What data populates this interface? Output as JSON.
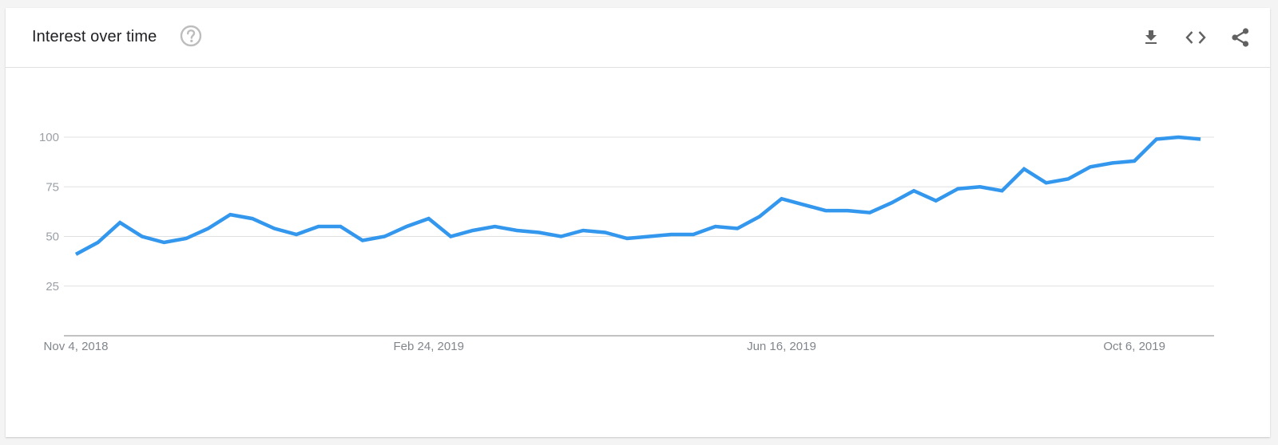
{
  "header": {
    "title": "Interest over time",
    "help_icon": "help-circle-icon",
    "actions": [
      {
        "name": "download-button",
        "icon": "download-icon"
      },
      {
        "name": "embed-button",
        "icon": "code-icon"
      },
      {
        "name": "share-button",
        "icon": "share-icon"
      }
    ]
  },
  "colors": {
    "line": "#3397ee",
    "grid": "#e0e0e0",
    "axis": "#9e9e9e",
    "icon": "#616161",
    "help_icon": "#bdbdbd"
  },
  "chart_data": {
    "type": "line",
    "title": "",
    "xlabel": "",
    "ylabel": "",
    "ylim": [
      0,
      100
    ],
    "yticks": [
      25,
      50,
      75,
      100
    ],
    "xtick_labels": [
      {
        "index": 0,
        "label": "Nov 4, 2018"
      },
      {
        "index": 16,
        "label": "Feb 24, 2019"
      },
      {
        "index": 32,
        "label": "Jun 16, 2019"
      },
      {
        "index": 48,
        "label": "Oct 6, 2019"
      }
    ],
    "grid": true,
    "series": [
      {
        "values": [
          41,
          47,
          57,
          50,
          47,
          49,
          54,
          61,
          59,
          54,
          51,
          55,
          55,
          48,
          50,
          55,
          59,
          50,
          53,
          55,
          53,
          52,
          50,
          53,
          52,
          49,
          50,
          51,
          51,
          55,
          54,
          60,
          69,
          66,
          63,
          63,
          62,
          67,
          73,
          68,
          74,
          75,
          73,
          84,
          77,
          79,
          85,
          87,
          88,
          99,
          100,
          99
        ]
      }
    ]
  }
}
